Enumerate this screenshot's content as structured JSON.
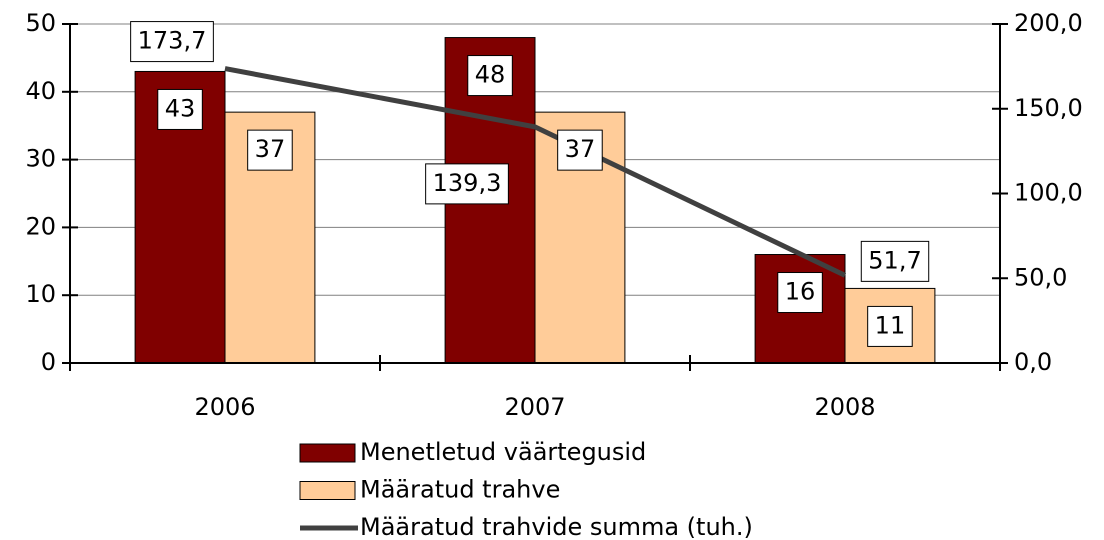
{
  "chart_data": {
    "type": "bar",
    "categories": [
      "2006",
      "2007",
      "2008"
    ],
    "series": [
      {
        "name": "Menetletud väärtegusid",
        "color": "#800000",
        "values": [
          43,
          48,
          16
        ]
      },
      {
        "name": "Määratud trahve",
        "color": "#ffcc99",
        "values": [
          37,
          37,
          11
        ]
      },
      {
        "name": "Määratud trahvide summa (tuh.)",
        "type": "line",
        "axis": "y2",
        "color": "#404040",
        "values": [
          173.7,
          139.3,
          51.7
        ],
        "value_labels": [
          "173,7",
          "139,3",
          "51,7"
        ]
      }
    ],
    "ylim": [
      0,
      50
    ],
    "yticks": [
      0,
      10,
      20,
      30,
      40,
      50
    ],
    "y2lim": [
      0,
      200
    ],
    "y2ticks": [
      {
        "value": 0,
        "label": "0,0"
      },
      {
        "value": 50,
        "label": "50,0"
      },
      {
        "value": 100,
        "label": "100,0"
      },
      {
        "value": 150,
        "label": "150,0"
      },
      {
        "value": 200,
        "label": "200,0"
      }
    ],
    "grid": true,
    "legend": "bottom"
  }
}
